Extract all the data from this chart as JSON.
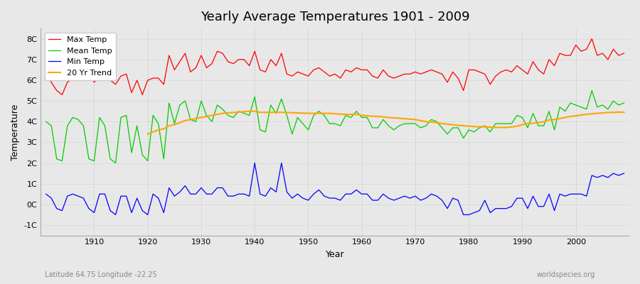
{
  "title": "Yearly Average Temperatures 1901 - 2009",
  "xlabel": "Year",
  "ylabel": "Temperature",
  "subtitle": "Latitude 64.75 Longitude -22.25",
  "watermark": "worldspecies.org",
  "ylim": [
    -1.5,
    8.5
  ],
  "yticks": [
    -1,
    0,
    1,
    2,
    3,
    4,
    5,
    6,
    7,
    8
  ],
  "ytick_labels": [
    "-1C",
    "0C",
    "1C",
    "2C",
    "3C",
    "4C",
    "5C",
    "6C",
    "7C",
    "8C"
  ],
  "xlim": [
    1900,
    2010
  ],
  "bg_color": "#f0f0f0",
  "plot_bg_color": "#e8e8e8",
  "legend": {
    "Max Temp": "#ff0000",
    "Mean Temp": "#00aa00",
    "Min Temp": "#0000ff",
    "20 Yr Trend": "#ffa500"
  },
  "years": [
    1901,
    1902,
    1903,
    1904,
    1905,
    1906,
    1907,
    1908,
    1909,
    1910,
    1911,
    1912,
    1913,
    1914,
    1915,
    1916,
    1917,
    1918,
    1919,
    1920,
    1921,
    1922,
    1923,
    1924,
    1925,
    1926,
    1927,
    1928,
    1929,
    1930,
    1931,
    1932,
    1933,
    1934,
    1935,
    1936,
    1937,
    1938,
    1939,
    1940,
    1941,
    1942,
    1943,
    1944,
    1945,
    1946,
    1947,
    1948,
    1949,
    1950,
    1951,
    1952,
    1953,
    1954,
    1955,
    1956,
    1957,
    1958,
    1959,
    1960,
    1961,
    1962,
    1963,
    1964,
    1965,
    1966,
    1967,
    1968,
    1969,
    1970,
    1971,
    1972,
    1973,
    1974,
    1975,
    1976,
    1977,
    1978,
    1979,
    1980,
    1981,
    1982,
    1983,
    1984,
    1985,
    1986,
    1987,
    1988,
    1989,
    1990,
    1991,
    1992,
    1993,
    1994,
    1995,
    1996,
    1997,
    1998,
    1999,
    2000,
    2001,
    2002,
    2003,
    2004,
    2005,
    2006,
    2007,
    2008,
    2009
  ],
  "max_temp": [
    6.3,
    5.9,
    5.5,
    5.3,
    5.9,
    6.1,
    6.0,
    6.2,
    6.5,
    5.9,
    6.2,
    6.1,
    6.0,
    5.8,
    6.2,
    6.3,
    5.4,
    6.0,
    5.3,
    6.0,
    6.1,
    6.1,
    5.8,
    7.2,
    6.5,
    6.9,
    7.3,
    6.4,
    6.6,
    7.2,
    6.6,
    6.8,
    7.4,
    7.3,
    6.9,
    6.8,
    7.0,
    7.0,
    6.7,
    7.4,
    6.5,
    6.4,
    7.0,
    6.7,
    7.3,
    6.3,
    6.2,
    6.4,
    6.3,
    6.2,
    6.5,
    6.6,
    6.4,
    6.2,
    6.3,
    6.1,
    6.5,
    6.4,
    6.6,
    6.5,
    6.5,
    6.2,
    6.1,
    6.5,
    6.2,
    6.1,
    6.2,
    6.3,
    6.3,
    6.4,
    6.3,
    6.4,
    6.5,
    6.4,
    6.3,
    5.9,
    6.4,
    6.1,
    5.5,
    6.5,
    6.5,
    6.4,
    6.3,
    5.8,
    6.2,
    6.4,
    6.5,
    6.4,
    6.7,
    6.5,
    6.3,
    6.9,
    6.5,
    6.3,
    7.0,
    6.7,
    7.3,
    7.2,
    7.2,
    7.7,
    7.4,
    7.5,
    8.0,
    7.2,
    7.3,
    7.0,
    7.5,
    7.2,
    7.3
  ],
  "mean_temp": [
    4.0,
    3.8,
    2.2,
    2.1,
    3.8,
    4.2,
    4.1,
    3.8,
    2.2,
    2.1,
    4.2,
    3.8,
    2.2,
    2.0,
    4.2,
    4.3,
    2.5,
    3.8,
    2.4,
    2.1,
    4.3,
    3.9,
    2.2,
    4.9,
    3.9,
    4.8,
    5.0,
    4.1,
    4.0,
    5.0,
    4.3,
    4.0,
    4.8,
    4.6,
    4.3,
    4.2,
    4.5,
    4.4,
    4.3,
    5.2,
    3.6,
    3.5,
    4.8,
    4.4,
    5.1,
    4.3,
    3.4,
    4.2,
    3.9,
    3.6,
    4.3,
    4.5,
    4.3,
    3.9,
    3.9,
    3.8,
    4.3,
    4.2,
    4.5,
    4.2,
    4.2,
    3.7,
    3.7,
    4.1,
    3.8,
    3.6,
    3.8,
    3.9,
    3.9,
    3.9,
    3.7,
    3.8,
    4.1,
    4.0,
    3.7,
    3.4,
    3.7,
    3.7,
    3.2,
    3.6,
    3.5,
    3.7,
    3.8,
    3.5,
    3.9,
    3.9,
    3.9,
    3.9,
    4.3,
    4.2,
    3.7,
    4.4,
    3.8,
    3.8,
    4.5,
    3.6,
    4.7,
    4.5,
    4.9,
    4.8,
    4.7,
    4.6,
    5.5,
    4.7,
    4.8,
    4.6,
    5.0,
    4.8,
    4.9
  ],
  "min_temp": [
    0.5,
    0.3,
    -0.2,
    -0.3,
    0.4,
    0.5,
    0.4,
    0.3,
    -0.2,
    -0.4,
    0.5,
    0.5,
    -0.3,
    -0.5,
    0.4,
    0.4,
    -0.4,
    0.3,
    -0.3,
    -0.5,
    0.5,
    0.3,
    -0.4,
    0.8,
    0.4,
    0.6,
    0.9,
    0.5,
    0.5,
    0.8,
    0.5,
    0.5,
    0.8,
    0.8,
    0.4,
    0.4,
    0.5,
    0.5,
    0.4,
    2.0,
    0.5,
    0.4,
    0.8,
    0.6,
    2.0,
    0.6,
    0.3,
    0.5,
    0.3,
    0.2,
    0.5,
    0.7,
    0.4,
    0.3,
    0.3,
    0.2,
    0.5,
    0.5,
    0.7,
    0.5,
    0.5,
    0.2,
    0.2,
    0.5,
    0.3,
    0.2,
    0.3,
    0.4,
    0.3,
    0.4,
    0.2,
    0.3,
    0.5,
    0.4,
    0.2,
    -0.2,
    0.3,
    0.2,
    -0.5,
    -0.5,
    -0.4,
    -0.3,
    0.2,
    -0.4,
    -0.2,
    -0.2,
    -0.2,
    -0.1,
    0.3,
    0.3,
    -0.2,
    0.4,
    -0.1,
    -0.1,
    0.5,
    -0.3,
    0.5,
    0.4,
    0.5,
    0.5,
    0.5,
    0.4,
    1.4,
    1.3,
    1.4,
    1.3,
    1.5,
    1.4,
    1.5
  ],
  "trend_years": [
    1920,
    1921,
    1922,
    1923,
    1924,
    1925,
    1926,
    1927,
    1928,
    1929,
    1930,
    1931,
    1932,
    1933,
    1934,
    1935,
    1936,
    1937,
    1938,
    1939,
    1940,
    1941,
    1942,
    1943,
    1944,
    1945,
    1946,
    1947,
    1948,
    1949,
    1950,
    1951,
    1952,
    1953,
    1954,
    1955,
    1956,
    1957,
    1958,
    1959,
    1960,
    1961,
    1962,
    1963,
    1964,
    1965,
    1966,
    1967,
    1968,
    1969,
    1970,
    1971,
    1972,
    1973,
    1974,
    1975,
    1976,
    1977,
    1978,
    1979,
    1980,
    1981,
    1982,
    1983,
    1984,
    1985,
    1986,
    1987,
    1988,
    1989,
    1990,
    1991,
    1992,
    1993,
    1994,
    1995,
    1996,
    1997,
    1998,
    1999,
    2000,
    2001,
    2002,
    2003,
    2004,
    2005,
    2006,
    2007,
    2008,
    2009
  ],
  "trend_temp": [
    3.4,
    3.5,
    3.6,
    3.65,
    3.8,
    3.85,
    3.95,
    4.05,
    4.1,
    4.15,
    4.2,
    4.25,
    4.3,
    4.35,
    4.4,
    4.42,
    4.44,
    4.46,
    4.48,
    4.5,
    4.5,
    4.45,
    4.45,
    4.45,
    4.45,
    4.45,
    4.44,
    4.43,
    4.42,
    4.41,
    4.4,
    4.4,
    4.4,
    4.4,
    4.4,
    4.38,
    4.36,
    4.35,
    4.35,
    4.35,
    4.3,
    4.28,
    4.26,
    4.25,
    4.23,
    4.2,
    4.18,
    4.16,
    4.14,
    4.12,
    4.1,
    4.05,
    4.0,
    3.98,
    3.95,
    3.9,
    3.88,
    3.85,
    3.82,
    3.8,
    3.78,
    3.76,
    3.75,
    3.75,
    3.73,
    3.72,
    3.72,
    3.72,
    3.74,
    3.78,
    3.85,
    3.9,
    3.92,
    3.95,
    4.0,
    4.08,
    4.1,
    4.15,
    4.2,
    4.25,
    4.28,
    4.32,
    4.35,
    4.38,
    4.4,
    4.42,
    4.44,
    4.45,
    4.46,
    4.45
  ]
}
